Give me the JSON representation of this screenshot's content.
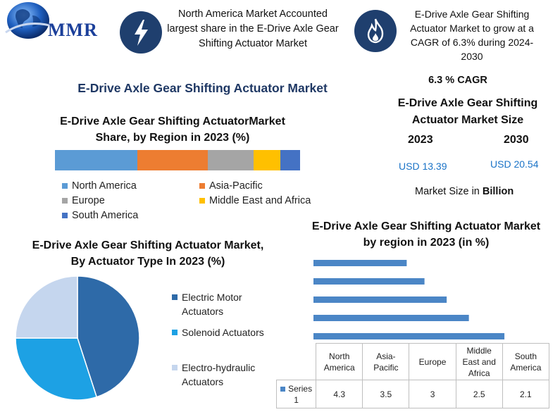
{
  "logo": {
    "text": "MMR"
  },
  "header": {
    "stat1": {
      "icon": "lightning-bolt-icon",
      "text": "North America Market Accounted largest share in the E-Drive Axle Gear Shifting Actuator Market"
    },
    "stat2": {
      "icon": "flame-icon",
      "text": "E-Drive Axle Gear Shifting Actuator Market to grow at a CAGR of 6.3% during 2024-2030"
    }
  },
  "main_title": "E-Drive Axle Gear Shifting Actuator Market",
  "market_size": {
    "cagr": "6.3 % CAGR",
    "title": "E-Drive Axle Gear Shifting Actuator Market Size",
    "year_a": "2023",
    "year_b": "2030",
    "value_a": "USD 13.39",
    "value_b": "USD 20.54",
    "unit_note_prefix": "Market Size in ",
    "unit_note_bold": "Billion"
  },
  "colors": {
    "accent_blue": "#1a73c7",
    "icon_bg": "#1f3f6e",
    "bar_blue": "#4b86c6"
  },
  "chart_data": [
    {
      "type": "bar",
      "orientation": "horizontal-stacked",
      "title": "E-Drive Axle Gear Shifting ActuatorMarket Share, by Region in 2023 (%)",
      "series": [
        {
          "name": "North America",
          "value": 33.5,
          "color": "#5b9bd5"
        },
        {
          "name": "Asia-Pacific",
          "value": 29,
          "color": "#ed7d31"
        },
        {
          "name": "Europe",
          "value": 18.5,
          "color": "#a5a5a5"
        },
        {
          "name": "Middle East and Africa",
          "value": 11,
          "color": "#ffc000"
        },
        {
          "name": "South America",
          "value": 8,
          "color": "#4472c4"
        }
      ],
      "legend_placement": "bottom"
    },
    {
      "type": "pie",
      "title": "E-Drive Axle Gear Shifting Actuator Market, By Actuator Type In 2023 (%)",
      "slices": [
        {
          "name": "Electric Motor Actuators",
          "value": 45,
          "color": "#2e6aa8"
        },
        {
          "name": "Solenoid Actuators",
          "value": 30,
          "color": "#1da1e4"
        },
        {
          "name": "Electro-hydraulic Actuators",
          "value": 25,
          "color": "#c5d6ee"
        }
      ],
      "legend_placement": "right"
    },
    {
      "type": "bar",
      "orientation": "horizontal",
      "title": "E-Drive Axle Gear Shifting Actuator Market by region in 2023 (in %)",
      "categories": [
        "North America",
        "Asia-Pacific",
        "Europe",
        "Middle East and Africa",
        "South America"
      ],
      "series": [
        {
          "name": "Series 1",
          "values": [
            4.3,
            3.5,
            3,
            2.5,
            2.1
          ],
          "color": "#4b86c6"
        }
      ],
      "xlim": [
        0,
        4.6
      ],
      "table_rows": {
        "headers": [
          "North America",
          "Asia-Pacific",
          "Europe",
          "Middle East and Africa",
          "South America"
        ],
        "series_label": "Series 1",
        "values": [
          "4.3",
          "3.5",
          "3",
          "2.5",
          "2.1"
        ]
      }
    }
  ]
}
